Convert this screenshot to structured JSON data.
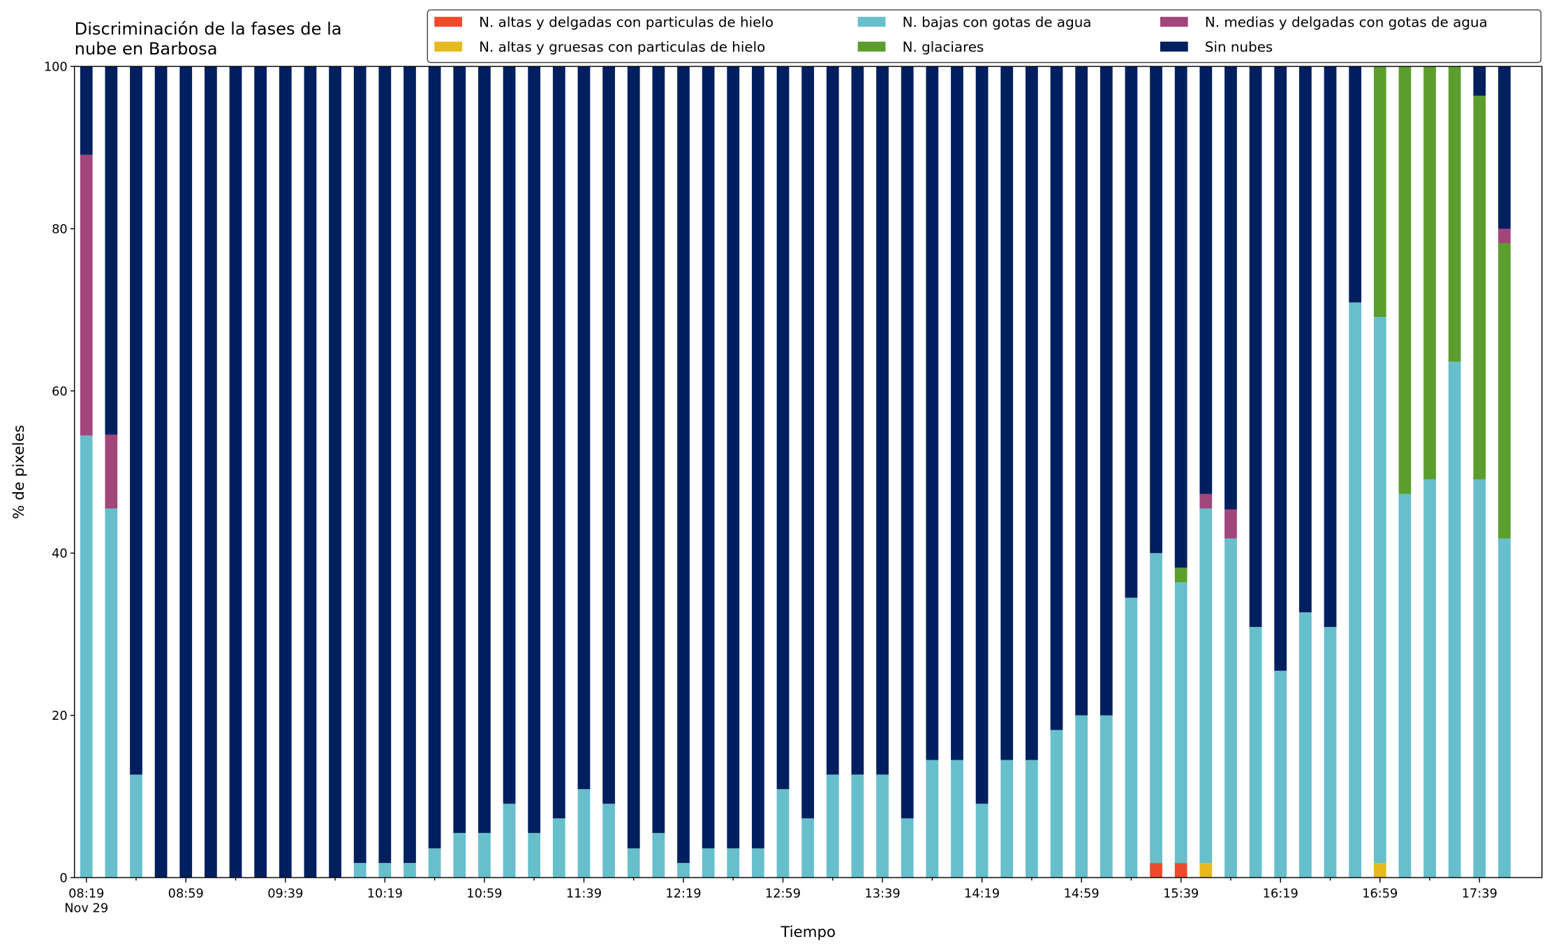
{
  "chart_data": {
    "type": "stacked_bar",
    "title": "Discriminación de la fases de la\nnube en Barbosa",
    "xlabel": "Tiempo",
    "ylabel": "% de pixeles",
    "categories": [
      "08:19\nNov 29",
      null,
      null,
      null,
      "08:59",
      null,
      null,
      null,
      "09:39",
      null,
      null,
      null,
      "10:19",
      null,
      null,
      null,
      "10:59",
      null,
      null,
      null,
      "11:39",
      null,
      null,
      null,
      "12:19",
      null,
      null,
      null,
      "12:59",
      null,
      null,
      null,
      "13:39",
      null,
      null,
      null,
      "14:19",
      null,
      null,
      null,
      "14:59",
      null,
      null,
      null,
      "15:39",
      null,
      null,
      null,
      "16:19",
      null,
      null,
      null,
      "16:59",
      null,
      null,
      null,
      "17:39",
      null
    ],
    "ylim": [
      0,
      100
    ],
    "yticks": [
      0,
      20,
      40,
      60,
      80,
      100
    ],
    "legend": "top-right",
    "series": [
      {
        "name": "N. altas y delgadas con particulas de hielo",
        "color": "#ef4a2b",
        "values": [
          0,
          0,
          0,
          0,
          0,
          0,
          0,
          0,
          0,
          0,
          0,
          0,
          0,
          0,
          0,
          0,
          0,
          0,
          0,
          0,
          0,
          0,
          0,
          0,
          0,
          0,
          0,
          0,
          0,
          0,
          0,
          0,
          0,
          0,
          0,
          0,
          0,
          0,
          0,
          0,
          0,
          0,
          0,
          1.8,
          1.8,
          0,
          0,
          0,
          0,
          0,
          0,
          0,
          0,
          0,
          0,
          0,
          0,
          0
        ]
      },
      {
        "name": "N. altas y gruesas con particulas de hielo",
        "color": "#e6b91e",
        "values": [
          0,
          0,
          0,
          0,
          0,
          0,
          0,
          0,
          0,
          0,
          0,
          0,
          0,
          0,
          0,
          0,
          0,
          0,
          0,
          0,
          0,
          0,
          0,
          0,
          0,
          0,
          0,
          0,
          0,
          0,
          0,
          0,
          0,
          0,
          0,
          0,
          0,
          0,
          0,
          0,
          0,
          0,
          0,
          0,
          0,
          1.8,
          0,
          0,
          0,
          0,
          0,
          0,
          1.8,
          0,
          0,
          0,
          0,
          0
        ]
      },
      {
        "name": "N. bajas con gotas de agua",
        "color": "#67bfcb",
        "values": [
          54.5,
          45.5,
          12.7,
          0,
          0,
          0,
          0,
          0,
          0,
          0,
          0,
          1.8,
          1.8,
          1.8,
          3.6,
          5.5,
          5.5,
          9.1,
          5.5,
          7.3,
          10.9,
          9.1,
          3.6,
          5.5,
          1.8,
          3.6,
          3.6,
          3.6,
          10.9,
          7.3,
          12.7,
          12.7,
          12.7,
          7.3,
          14.5,
          14.5,
          9.1,
          14.5,
          14.5,
          18.2,
          20,
          20,
          34.5,
          38.2,
          34.6,
          43.7,
          41.8,
          30.9,
          25.5,
          32.7,
          30.9,
          70.9,
          67.3,
          47.3,
          49.1,
          63.6,
          49.1,
          41.8
        ]
      },
      {
        "name": "N. glaciares",
        "color": "#5c9e2e",
        "values": [
          0,
          0,
          0,
          0,
          0,
          0,
          0,
          0,
          0,
          0,
          0,
          0,
          0,
          0,
          0,
          0,
          0,
          0,
          0,
          0,
          0,
          0,
          0,
          0,
          0,
          0,
          0,
          0,
          0,
          0,
          0,
          0,
          0,
          0,
          0,
          0,
          0,
          0,
          0,
          0,
          0,
          0,
          0,
          0,
          1.8,
          0,
          0,
          0,
          0,
          0,
          0,
          0,
          30.9,
          52.7,
          50.9,
          36.4,
          47.3,
          36.4
        ]
      },
      {
        "name": "N. medias y delgadas con gotas de agua",
        "color": "#a2457b",
        "values": [
          34.6,
          9.1,
          0,
          0,
          0,
          0,
          0,
          0,
          0,
          0,
          0,
          0,
          0,
          0,
          0,
          0,
          0,
          0,
          0,
          0,
          0,
          0,
          0,
          0,
          0,
          0,
          0,
          0,
          0,
          0,
          0,
          0,
          0,
          0,
          0,
          0,
          0,
          0,
          0,
          0,
          0,
          0,
          0,
          0,
          0,
          1.8,
          3.6,
          0,
          0,
          0,
          0,
          0,
          0,
          0,
          0,
          0,
          0,
          1.8
        ]
      },
      {
        "name": "Sin nubes",
        "color": "#001f5f",
        "values": [
          10.9,
          45.4,
          87.3,
          100,
          100,
          100,
          100,
          100,
          100,
          100,
          100,
          98.2,
          98.2,
          98.2,
          96.4,
          94.5,
          94.5,
          90.9,
          94.5,
          92.7,
          89.1,
          90.9,
          96.4,
          94.5,
          98.2,
          96.4,
          96.4,
          96.4,
          89.1,
          92.7,
          87.3,
          87.3,
          87.3,
          92.7,
          85.5,
          85.5,
          90.9,
          85.5,
          85.5,
          81.8,
          80,
          80,
          65.5,
          60,
          61.8,
          52.7,
          54.6,
          69.1,
          74.5,
          67.3,
          69.1,
          29.1,
          0,
          0,
          0,
          0,
          3.6,
          20
        ]
      }
    ]
  }
}
